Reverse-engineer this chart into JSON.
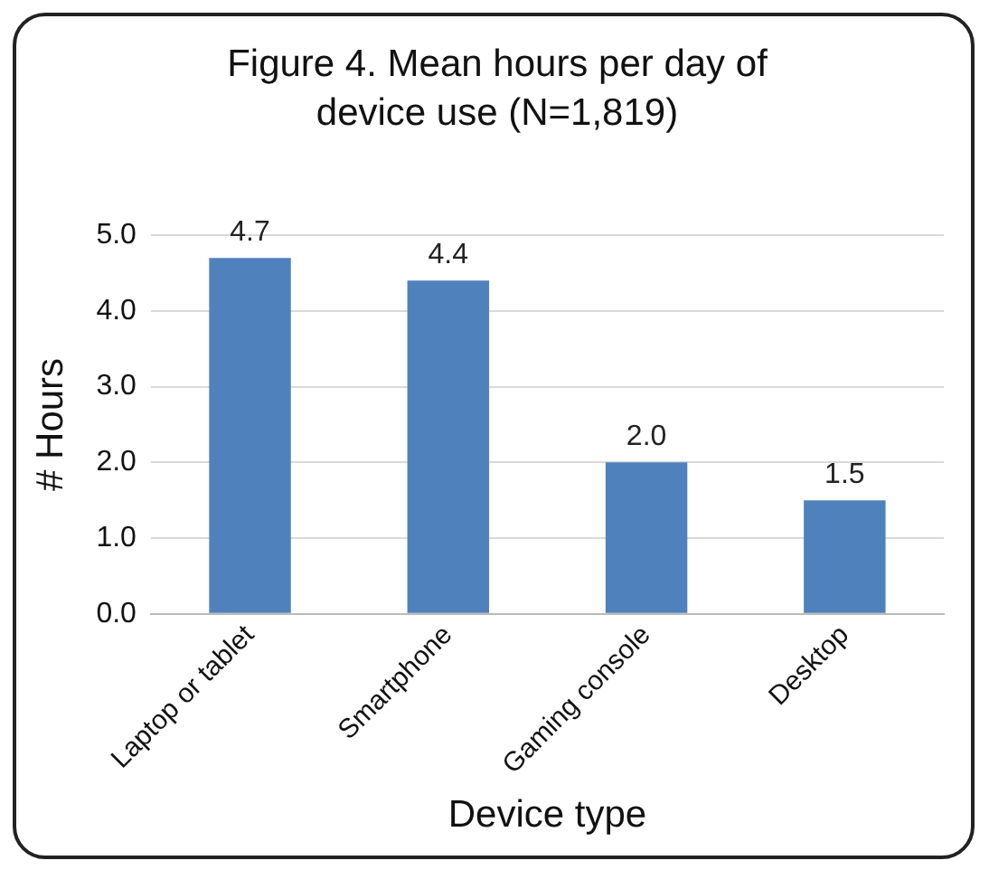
{
  "chart_data": {
    "type": "bar",
    "title": "Figure 4. Mean hours per day of device use (N=1,819)",
    "xlabel": "Device type",
    "ylabel": "# Hours",
    "categories": [
      "Laptop or tablet",
      "Smartphone",
      "Gaming console",
      "Desktop"
    ],
    "values": [
      4.7,
      4.4,
      2.0,
      1.5
    ],
    "color": "#4f81bd",
    "value_labels": [
      "4.7",
      "4.4",
      "2.0",
      "1.5"
    ],
    "ylim": [
      0,
      5
    ],
    "yticks": [
      {
        "value": 0,
        "label": "0.0"
      },
      {
        "value": 1,
        "label": "1.0"
      },
      {
        "value": 2,
        "label": "2.0"
      },
      {
        "value": 3,
        "label": "3.0"
      },
      {
        "value": 4,
        "label": "4.0"
      },
      {
        "value": 5,
        "label": "5.0"
      }
    ],
    "grid": "y",
    "legend": false
  }
}
